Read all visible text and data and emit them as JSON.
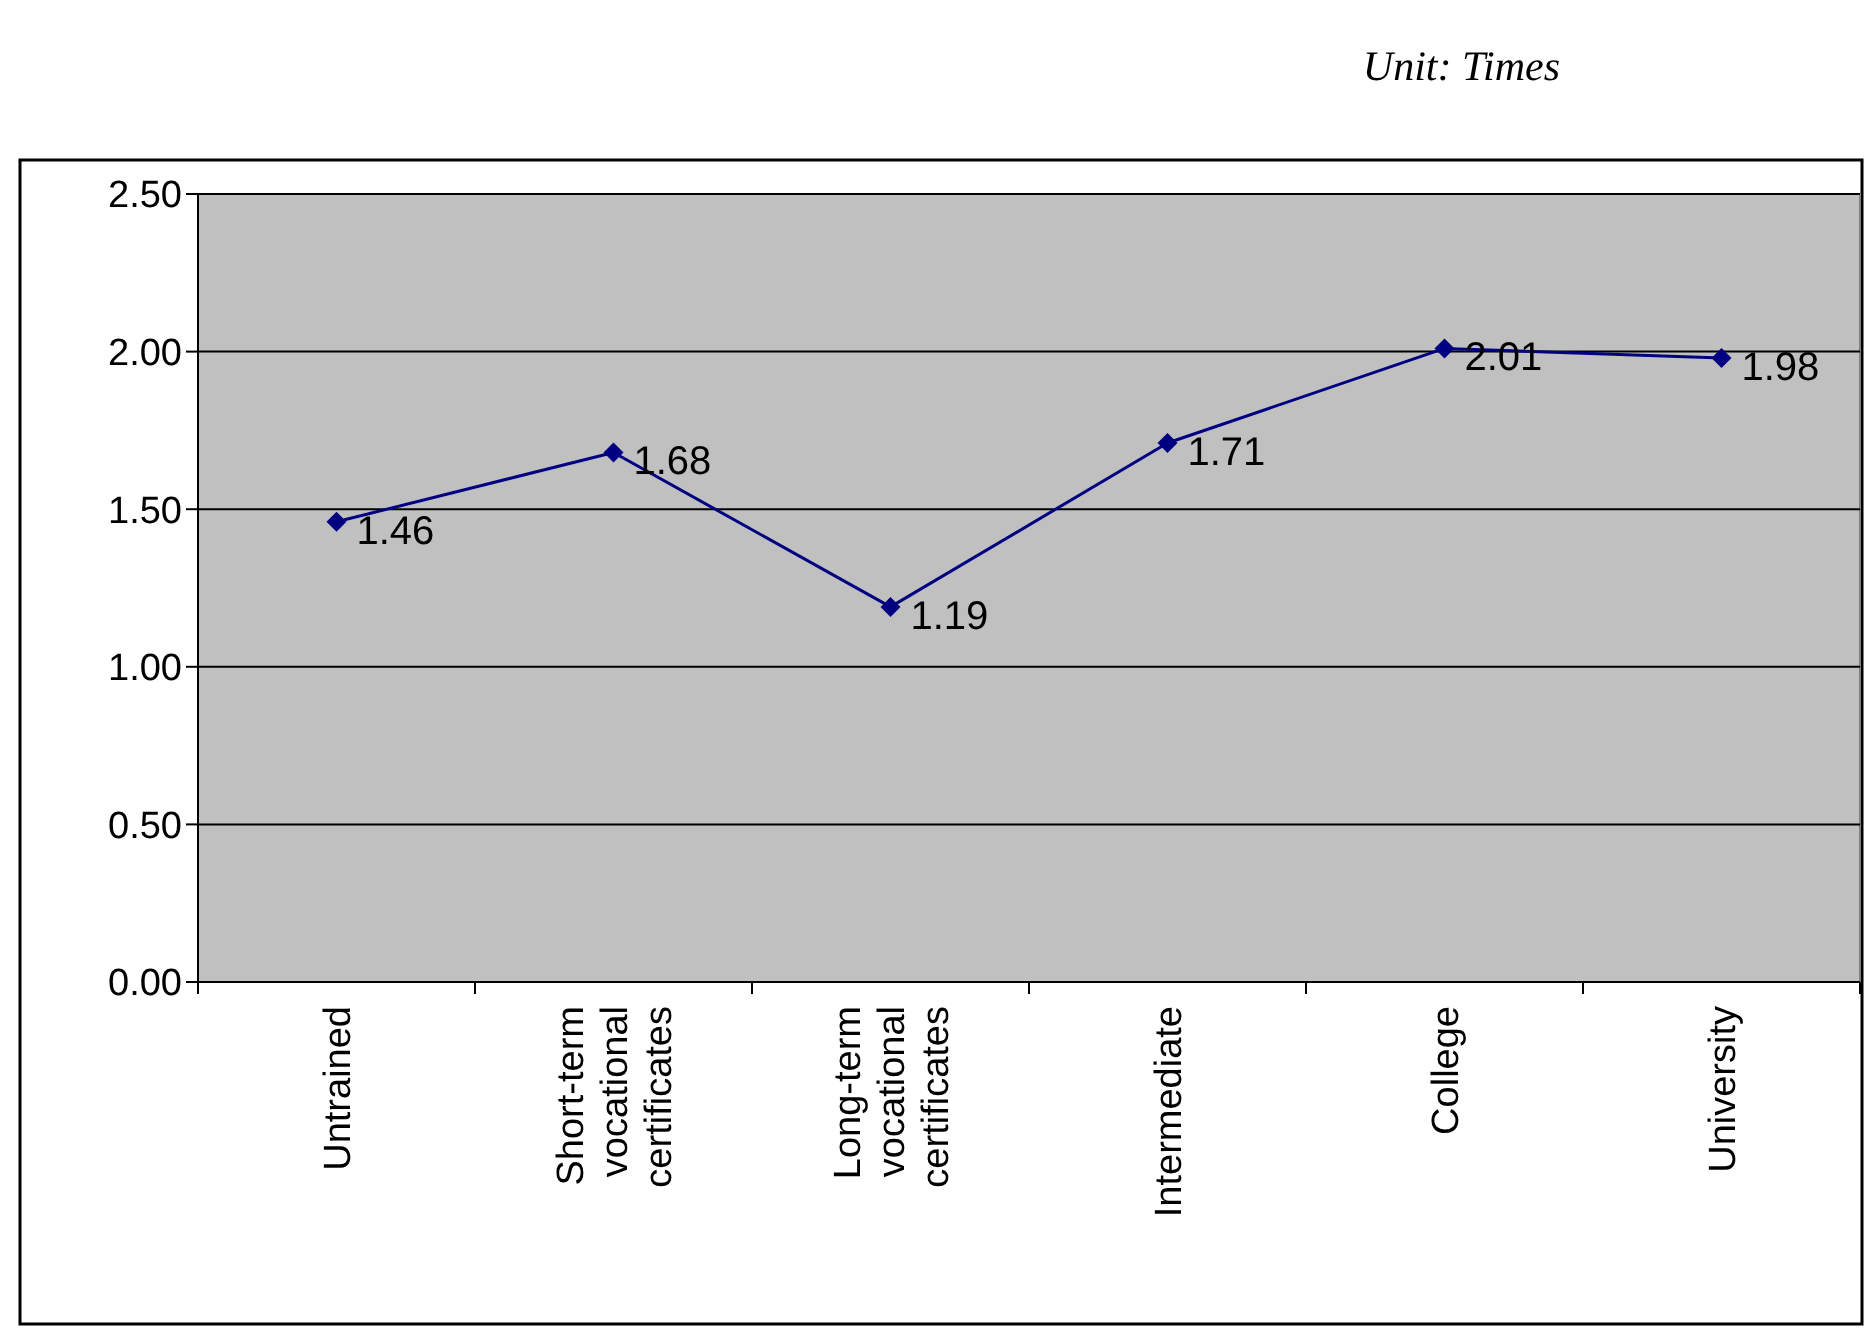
{
  "chart_data": {
    "type": "line",
    "annotations": [
      "Unit: Times"
    ],
    "categories": [
      "Untrained",
      "Short-term vocational certificates",
      "Long-term vocational certificates",
      "Intermediate",
      "College",
      "University"
    ],
    "series": [
      {
        "color": "#000080",
        "values": [
          1.46,
          1.68,
          1.19,
          1.71,
          2.01,
          1.98
        ]
      }
    ],
    "ylim": [
      0,
      2.5
    ],
    "yticks": [
      {
        "value": 0,
        "label": "0.00"
      },
      {
        "value": 0.5,
        "label": "0.50"
      },
      {
        "value": 1,
        "label": "1.00"
      },
      {
        "value": 1.5,
        "label": "1.50"
      },
      {
        "value": 2,
        "label": "2.00"
      },
      {
        "value": 2.5,
        "label": "2.50"
      }
    ],
    "grid": "y",
    "marker": "diamond",
    "line_style": "solid",
    "data_labels": true
  }
}
